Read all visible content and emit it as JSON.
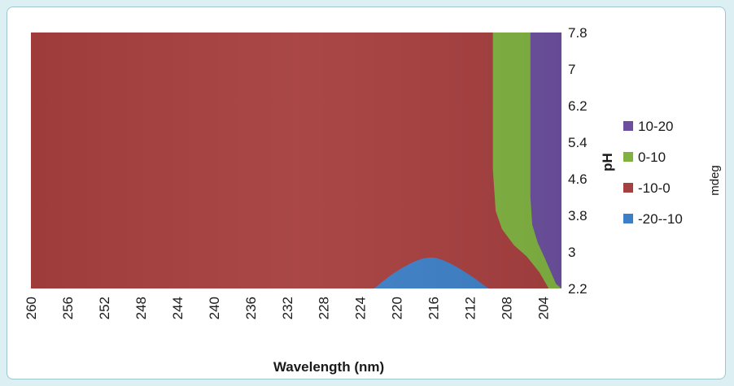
{
  "chart_data": {
    "type": "area",
    "subtype": "contour",
    "xlabel": "Wavelength (nm)",
    "ylabel": "pH",
    "colorbar_label": "mdeg",
    "x_ticks": [
      "260",
      "256",
      "252",
      "248",
      "244",
      "240",
      "236",
      "232",
      "228",
      "224",
      "220",
      "216",
      "212",
      "208",
      "204"
    ],
    "y_ticks": [
      "2.2",
      "3",
      "3.8",
      "4.6",
      "5.4",
      "6.2",
      "7",
      "7.8"
    ],
    "xlim": [
      260,
      202
    ],
    "ylim": [
      2.2,
      7.8
    ],
    "legend_position": "right",
    "bands": [
      {
        "name": "10-20",
        "color": "#6c4f9e"
      },
      {
        "name": "0-10",
        "color": "#7fb241"
      },
      {
        "name": "-10-0",
        "color": "#a63f3f"
      },
      {
        "name": "-20--10",
        "color": "#3d7fc6"
      }
    ],
    "regions": {
      "background_band": "-10-0",
      "negative_region_band": "-20--10",
      "negative_region_outline": [
        [
          222.5,
          2.2
        ],
        [
          220,
          2.6
        ],
        [
          217,
          2.9
        ],
        [
          215,
          2.85
        ],
        [
          212,
          2.5
        ],
        [
          210,
          2.2
        ]
      ],
      "zero_contour_band": "0-10",
      "zero_contour": [
        [
          209.5,
          7.8
        ],
        [
          209.5,
          4.8
        ],
        [
          209.2,
          3.9
        ],
        [
          208.5,
          3.5
        ],
        [
          207.2,
          3.15
        ],
        [
          205.8,
          2.9
        ],
        [
          204.4,
          2.55
        ],
        [
          203.4,
          2.2
        ]
      ],
      "ten_contour_band": "10-20",
      "ten_contour": [
        [
          205.4,
          7.8
        ],
        [
          205.4,
          4.2
        ],
        [
          205.2,
          3.6
        ],
        [
          204.6,
          3.2
        ],
        [
          203.8,
          2.85
        ],
        [
          202.6,
          2.3
        ],
        [
          202,
          2.2
        ]
      ]
    }
  }
}
